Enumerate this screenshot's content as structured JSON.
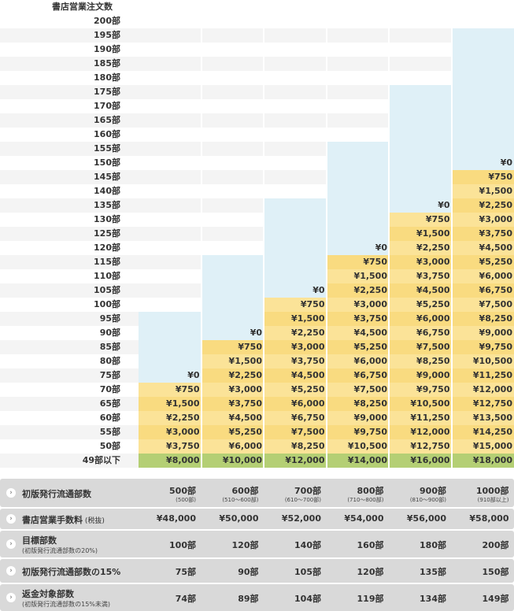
{
  "title": "書店営業注文数",
  "row_labels": [
    "200部",
    "195部",
    "190部",
    "185部",
    "180部",
    "175部",
    "170部",
    "165部",
    "160部",
    "155部",
    "150部",
    "145部",
    "140部",
    "135部",
    "130部",
    "125部",
    "120部",
    "115部",
    "110部",
    "105部",
    "100部",
    "95部",
    "90部",
    "85部",
    "80部",
    "75部",
    "70部",
    "65部",
    "60部",
    "55部",
    "50部",
    "49部以下"
  ],
  "columns": [
    {
      "name": "500部",
      "blue_rows": [
        "95部",
        "90部",
        "85部",
        "80部",
        "75部"
      ],
      "values": [
        [
          "75部",
          "¥0"
        ],
        [
          "70部",
          "¥750"
        ],
        [
          "65部",
          "¥1,500"
        ],
        [
          "60部",
          "¥2,250"
        ],
        [
          "55部",
          "¥3,000"
        ],
        [
          "50部",
          "¥3,750"
        ]
      ],
      "base": "¥8,000"
    },
    {
      "name": "600部",
      "blue_rows": [
        "115部",
        "110部",
        "105部",
        "100部",
        "95部"
      ],
      "values": [
        [
          "90部",
          "¥0"
        ],
        [
          "85部",
          "¥750"
        ],
        [
          "80部",
          "¥1,500"
        ],
        [
          "75部",
          "¥2,250"
        ],
        [
          "70部",
          "¥3,000"
        ],
        [
          "65部",
          "¥3,750"
        ],
        [
          "60部",
          "¥4,500"
        ],
        [
          "55部",
          "¥5,250"
        ],
        [
          "50部",
          "¥6,000"
        ]
      ],
      "base": "¥10,000"
    },
    {
      "name": "700部",
      "blue_rows": [
        "135部",
        "130部",
        "125部",
        "120部",
        "115部",
        "110部"
      ],
      "values": [
        [
          "105部",
          "¥0"
        ],
        [
          "100部",
          "¥750"
        ],
        [
          "95部",
          "¥1,500"
        ],
        [
          "90部",
          "¥2,250"
        ],
        [
          "85部",
          "¥3,000"
        ],
        [
          "80部",
          "¥3,750"
        ],
        [
          "75部",
          "¥4,500"
        ],
        [
          "70部",
          "¥5,250"
        ],
        [
          "65部",
          "¥6,000"
        ],
        [
          "60部",
          "¥6,750"
        ],
        [
          "55部",
          "¥7,500"
        ],
        [
          "50部",
          "¥8,250"
        ]
      ],
      "base": "¥12,000"
    },
    {
      "name": "800部",
      "blue_rows": [
        "155部",
        "150部",
        "145部",
        "140部",
        "135部",
        "130部",
        "125部"
      ],
      "values": [
        [
          "120部",
          "¥0"
        ],
        [
          "115部",
          "¥750"
        ],
        [
          "110部",
          "¥1,500"
        ],
        [
          "105部",
          "¥2,250"
        ],
        [
          "100部",
          "¥3,000"
        ],
        [
          "95部",
          "¥3,750"
        ],
        [
          "90部",
          "¥4,500"
        ],
        [
          "85部",
          "¥5,250"
        ],
        [
          "80部",
          "¥6,000"
        ],
        [
          "75部",
          "¥6,750"
        ],
        [
          "70部",
          "¥7,500"
        ],
        [
          "65部",
          "¥8,250"
        ],
        [
          "60部",
          "¥9,000"
        ],
        [
          "55部",
          "¥9,750"
        ],
        [
          "50部",
          "¥10,500"
        ]
      ],
      "base": "¥14,000"
    },
    {
      "name": "900部",
      "blue_rows": [
        "175部",
        "170部",
        "165部",
        "160部",
        "155部",
        "150部",
        "145部",
        "140部"
      ],
      "values": [
        [
          "135部",
          "¥0"
        ],
        [
          "130部",
          "¥750"
        ],
        [
          "125部",
          "¥1,500"
        ],
        [
          "120部",
          "¥2,250"
        ],
        [
          "115部",
          "¥3,000"
        ],
        [
          "110部",
          "¥3,750"
        ],
        [
          "105部",
          "¥4,500"
        ],
        [
          "100部",
          "¥5,250"
        ],
        [
          "95部",
          "¥6,000"
        ],
        [
          "90部",
          "¥6,750"
        ],
        [
          "85部",
          "¥7,500"
        ],
        [
          "80部",
          "¥8,250"
        ],
        [
          "75部",
          "¥9,000"
        ],
        [
          "70部",
          "¥9,750"
        ],
        [
          "65部",
          "¥10,500"
        ],
        [
          "60部",
          "¥11,250"
        ],
        [
          "55部",
          "¥12,000"
        ],
        [
          "50部",
          "¥12,750"
        ]
      ],
      "base": "¥16,000"
    },
    {
      "name": "1000部",
      "blue_rows": [
        "195部",
        "190部",
        "185部",
        "180部",
        "175部",
        "170部",
        "165部",
        "160部",
        "155部"
      ],
      "values": [
        [
          "150部",
          "¥0"
        ],
        [
          "145部",
          "¥750"
        ],
        [
          "140部",
          "¥1,500"
        ],
        [
          "135部",
          "¥2,250"
        ],
        [
          "130部",
          "¥3,000"
        ],
        [
          "125部",
          "¥3,750"
        ],
        [
          "120部",
          "¥4,500"
        ],
        [
          "115部",
          "¥5,250"
        ],
        [
          "110部",
          "¥6,000"
        ],
        [
          "105部",
          "¥6,750"
        ],
        [
          "100部",
          "¥7,500"
        ],
        [
          "95部",
          "¥8,250"
        ],
        [
          "90部",
          "¥9,000"
        ],
        [
          "85部",
          "¥9,750"
        ],
        [
          "80部",
          "¥10,500"
        ],
        [
          "75部",
          "¥11,250"
        ],
        [
          "70部",
          "¥12,000"
        ],
        [
          "65部",
          "¥12,750"
        ],
        [
          "60部",
          "¥13,500"
        ],
        [
          "55部",
          "¥14,250"
        ],
        [
          "50部",
          "¥15,000"
        ]
      ],
      "base": "¥18,000"
    }
  ],
  "summary": {
    "bullet_glyph": "›",
    "rows": [
      {
        "label": "初版発行流通部数",
        "sub": "",
        "values": [
          {
            "v": "500部",
            "s": "(500部)"
          },
          {
            "v": "600部",
            "s": "(510〜600部)"
          },
          {
            "v": "700部",
            "s": "(610〜700部)"
          },
          {
            "v": "800部",
            "s": "(710〜800部)"
          },
          {
            "v": "900部",
            "s": "(810〜900部)"
          },
          {
            "v": "1000部",
            "s": "(910部以上)"
          }
        ]
      },
      {
        "label": "書店営業手数料",
        "label_note": "(税抜)",
        "sub": "",
        "values": [
          {
            "v": "¥48,000"
          },
          {
            "v": "¥50,000"
          },
          {
            "v": "¥52,000"
          },
          {
            "v": "¥54,000"
          },
          {
            "v": "¥56,000"
          },
          {
            "v": "¥58,000"
          }
        ]
      },
      {
        "label": "目標部数",
        "sub": "(初版発行流通部数の20%)",
        "values": [
          {
            "v": "100部"
          },
          {
            "v": "120部"
          },
          {
            "v": "140部"
          },
          {
            "v": "160部"
          },
          {
            "v": "180部"
          },
          {
            "v": "200部"
          }
        ]
      },
      {
        "label": "初版発行流通部数の15%",
        "sub": "",
        "values": [
          {
            "v": "75部"
          },
          {
            "v": "90部"
          },
          {
            "v": "105部"
          },
          {
            "v": "120部"
          },
          {
            "v": "135部"
          },
          {
            "v": "150部"
          }
        ]
      },
      {
        "label": "返金対象部数",
        "sub": "(初版発行流通部数の15%未満)",
        "values": [
          {
            "v": "74部"
          },
          {
            "v": "89部"
          },
          {
            "v": "104部"
          },
          {
            "v": "119部"
          },
          {
            "v": "134部"
          },
          {
            "v": "149部"
          }
        ]
      }
    ]
  }
}
